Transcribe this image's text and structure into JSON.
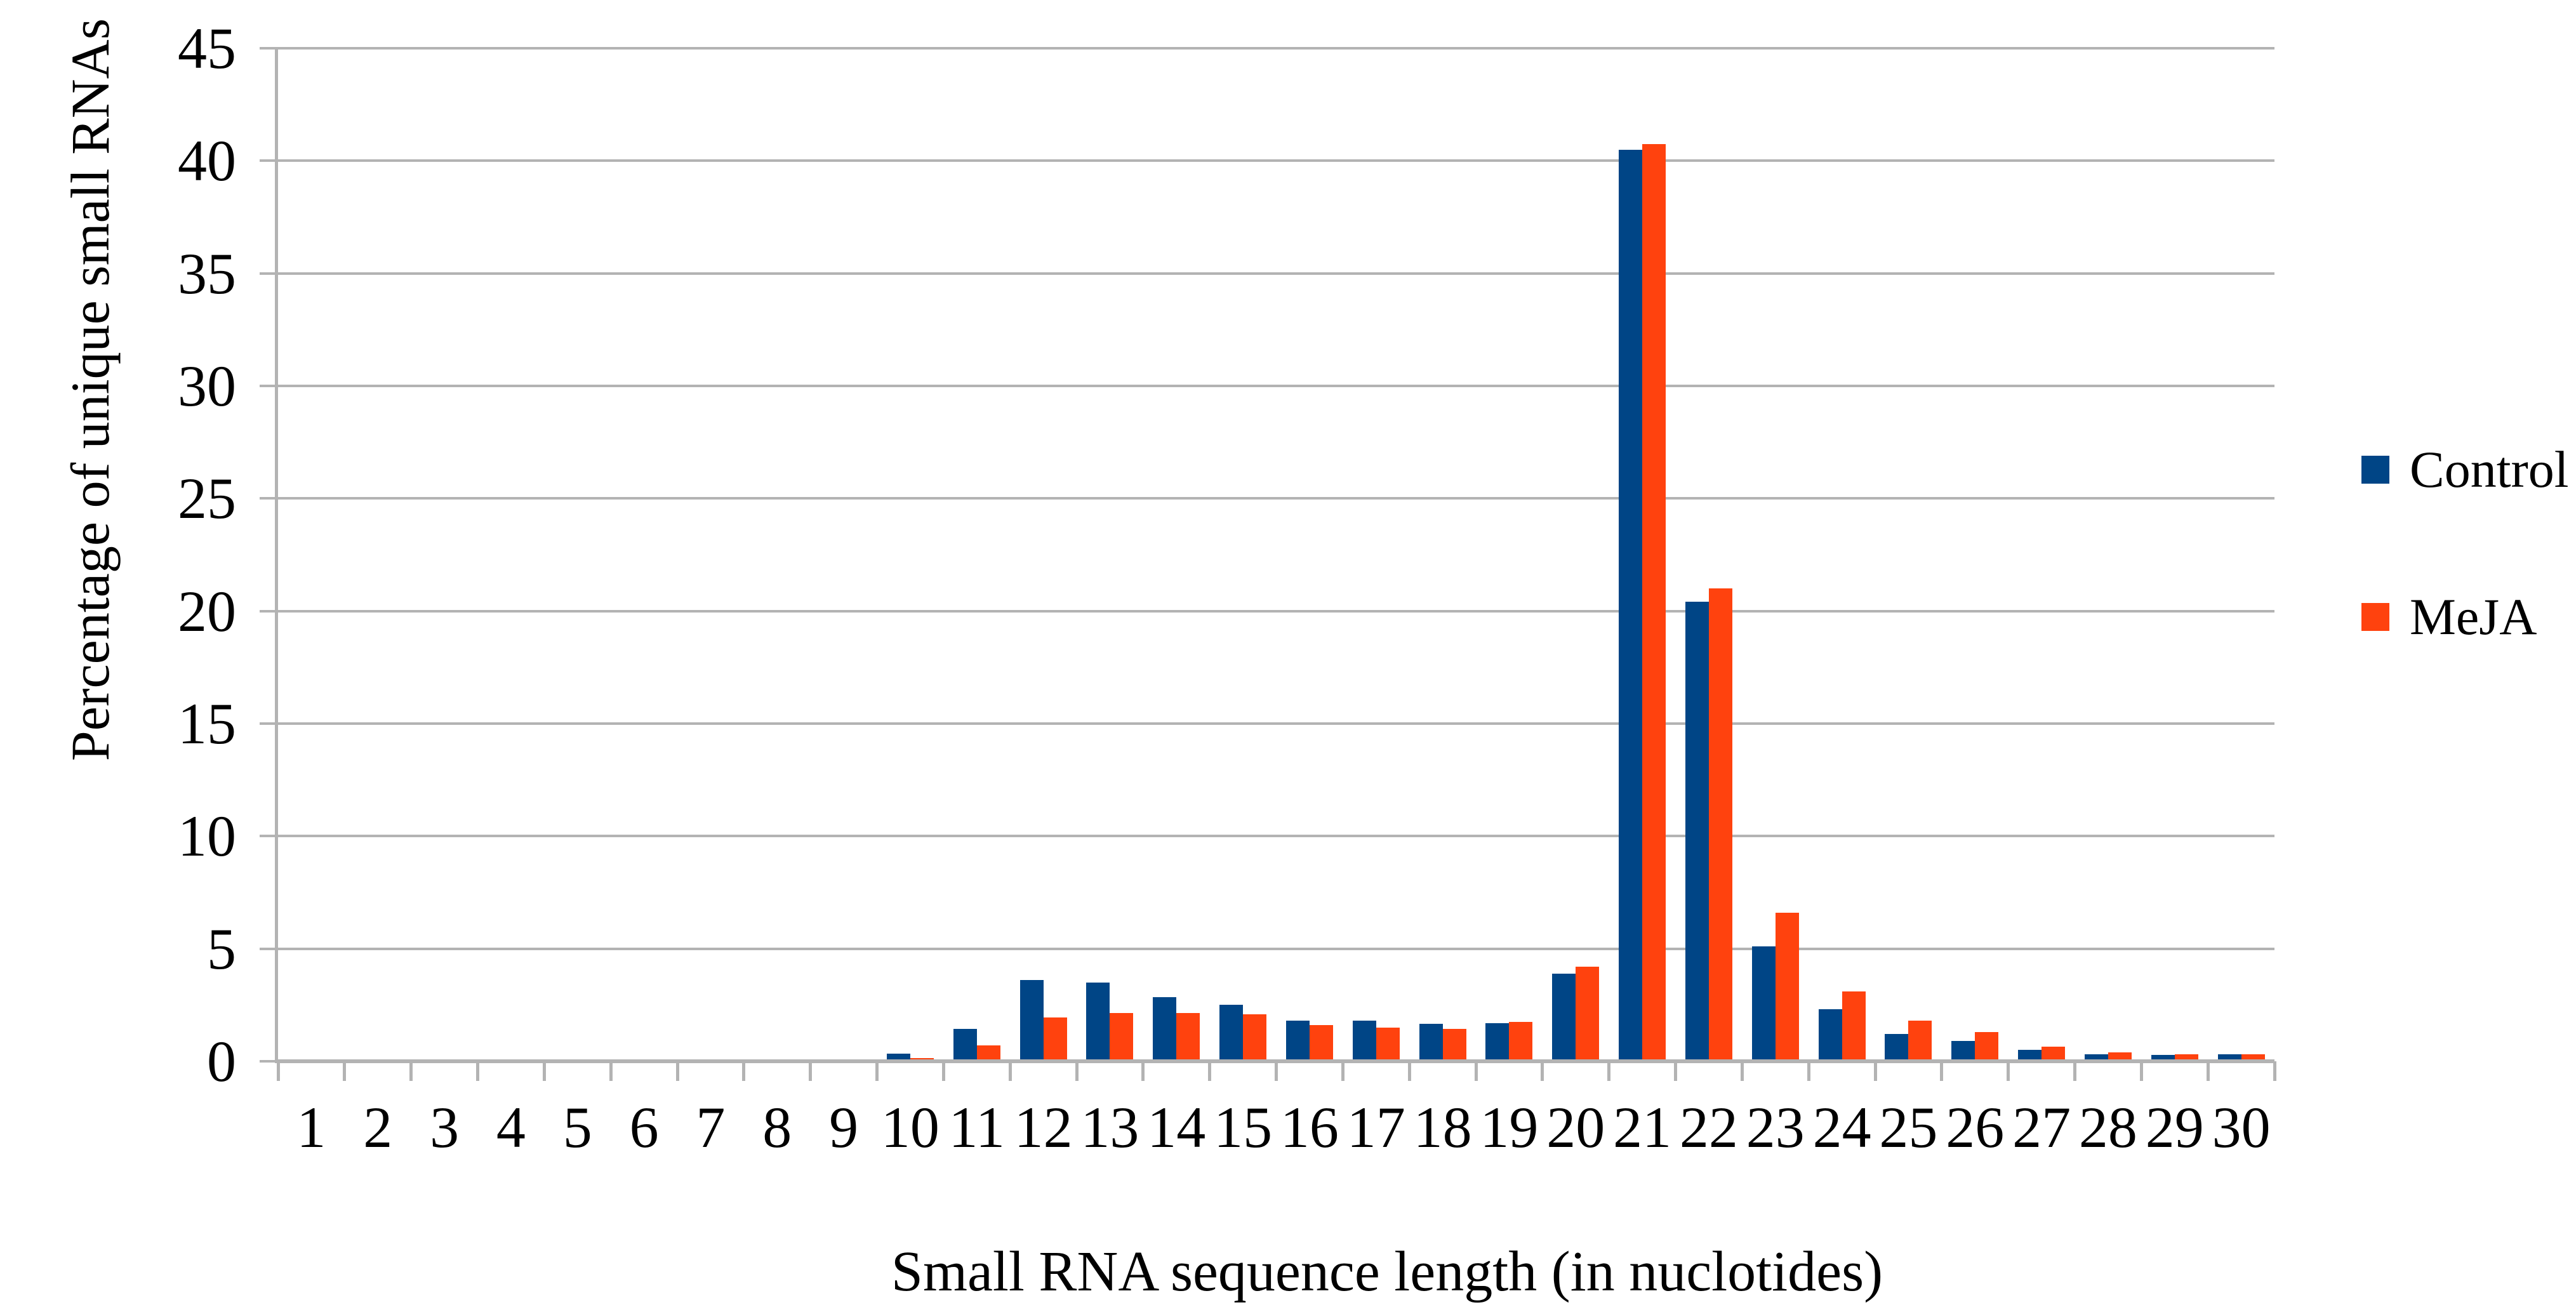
{
  "chart_data": {
    "type": "bar",
    "title": "",
    "xlabel": "Small RNA sequence length (in nuclotides)",
    "ylabel": "Percentage of unique small RNAs",
    "categories": [
      "1",
      "2",
      "3",
      "4",
      "5",
      "6",
      "7",
      "8",
      "9",
      "10",
      "11",
      "12",
      "13",
      "14",
      "15",
      "16",
      "17",
      "18",
      "19",
      "20",
      "21",
      "22",
      "23",
      "24",
      "25",
      "26",
      "27",
      "28",
      "29",
      "30"
    ],
    "series": [
      {
        "name": "Control",
        "color": "#004586",
        "values": [
          0,
          0,
          0,
          0,
          0,
          0,
          0,
          0,
          0,
          0.35,
          1.45,
          3.6,
          3.5,
          2.85,
          2.5,
          1.8,
          1.8,
          1.65,
          1.7,
          3.9,
          40.5,
          20.4,
          5.1,
          2.3,
          1.2,
          0.9,
          0.5,
          0.3,
          0.28,
          0.3
        ]
      },
      {
        "name": "MeJA",
        "color": "#FF420E",
        "values": [
          0,
          0,
          0,
          0,
          0,
          0,
          0,
          0,
          0,
          0.15,
          0.7,
          1.95,
          2.15,
          2.15,
          2.1,
          1.6,
          1.5,
          1.45,
          1.75,
          4.2,
          40.75,
          21.0,
          6.6,
          3.1,
          1.8,
          1.3,
          0.65,
          0.4,
          0.32,
          0.3
        ]
      }
    ],
    "ylim": [
      0,
      45
    ],
    "yticks": [
      0,
      5,
      10,
      15,
      20,
      25,
      30,
      35,
      40,
      45
    ],
    "ytick_labels": [
      "0",
      "5",
      "10",
      "15",
      "20",
      "25",
      "30",
      "35",
      "40",
      "45"
    ],
    "grid": true,
    "legend_position": "right"
  },
  "colors": {
    "control": "#004586",
    "meja": "#FF420E",
    "gridline": "#b3b3b3",
    "axis_line": "#b3b3b3",
    "text": "#000000",
    "background": "#ffffff"
  }
}
